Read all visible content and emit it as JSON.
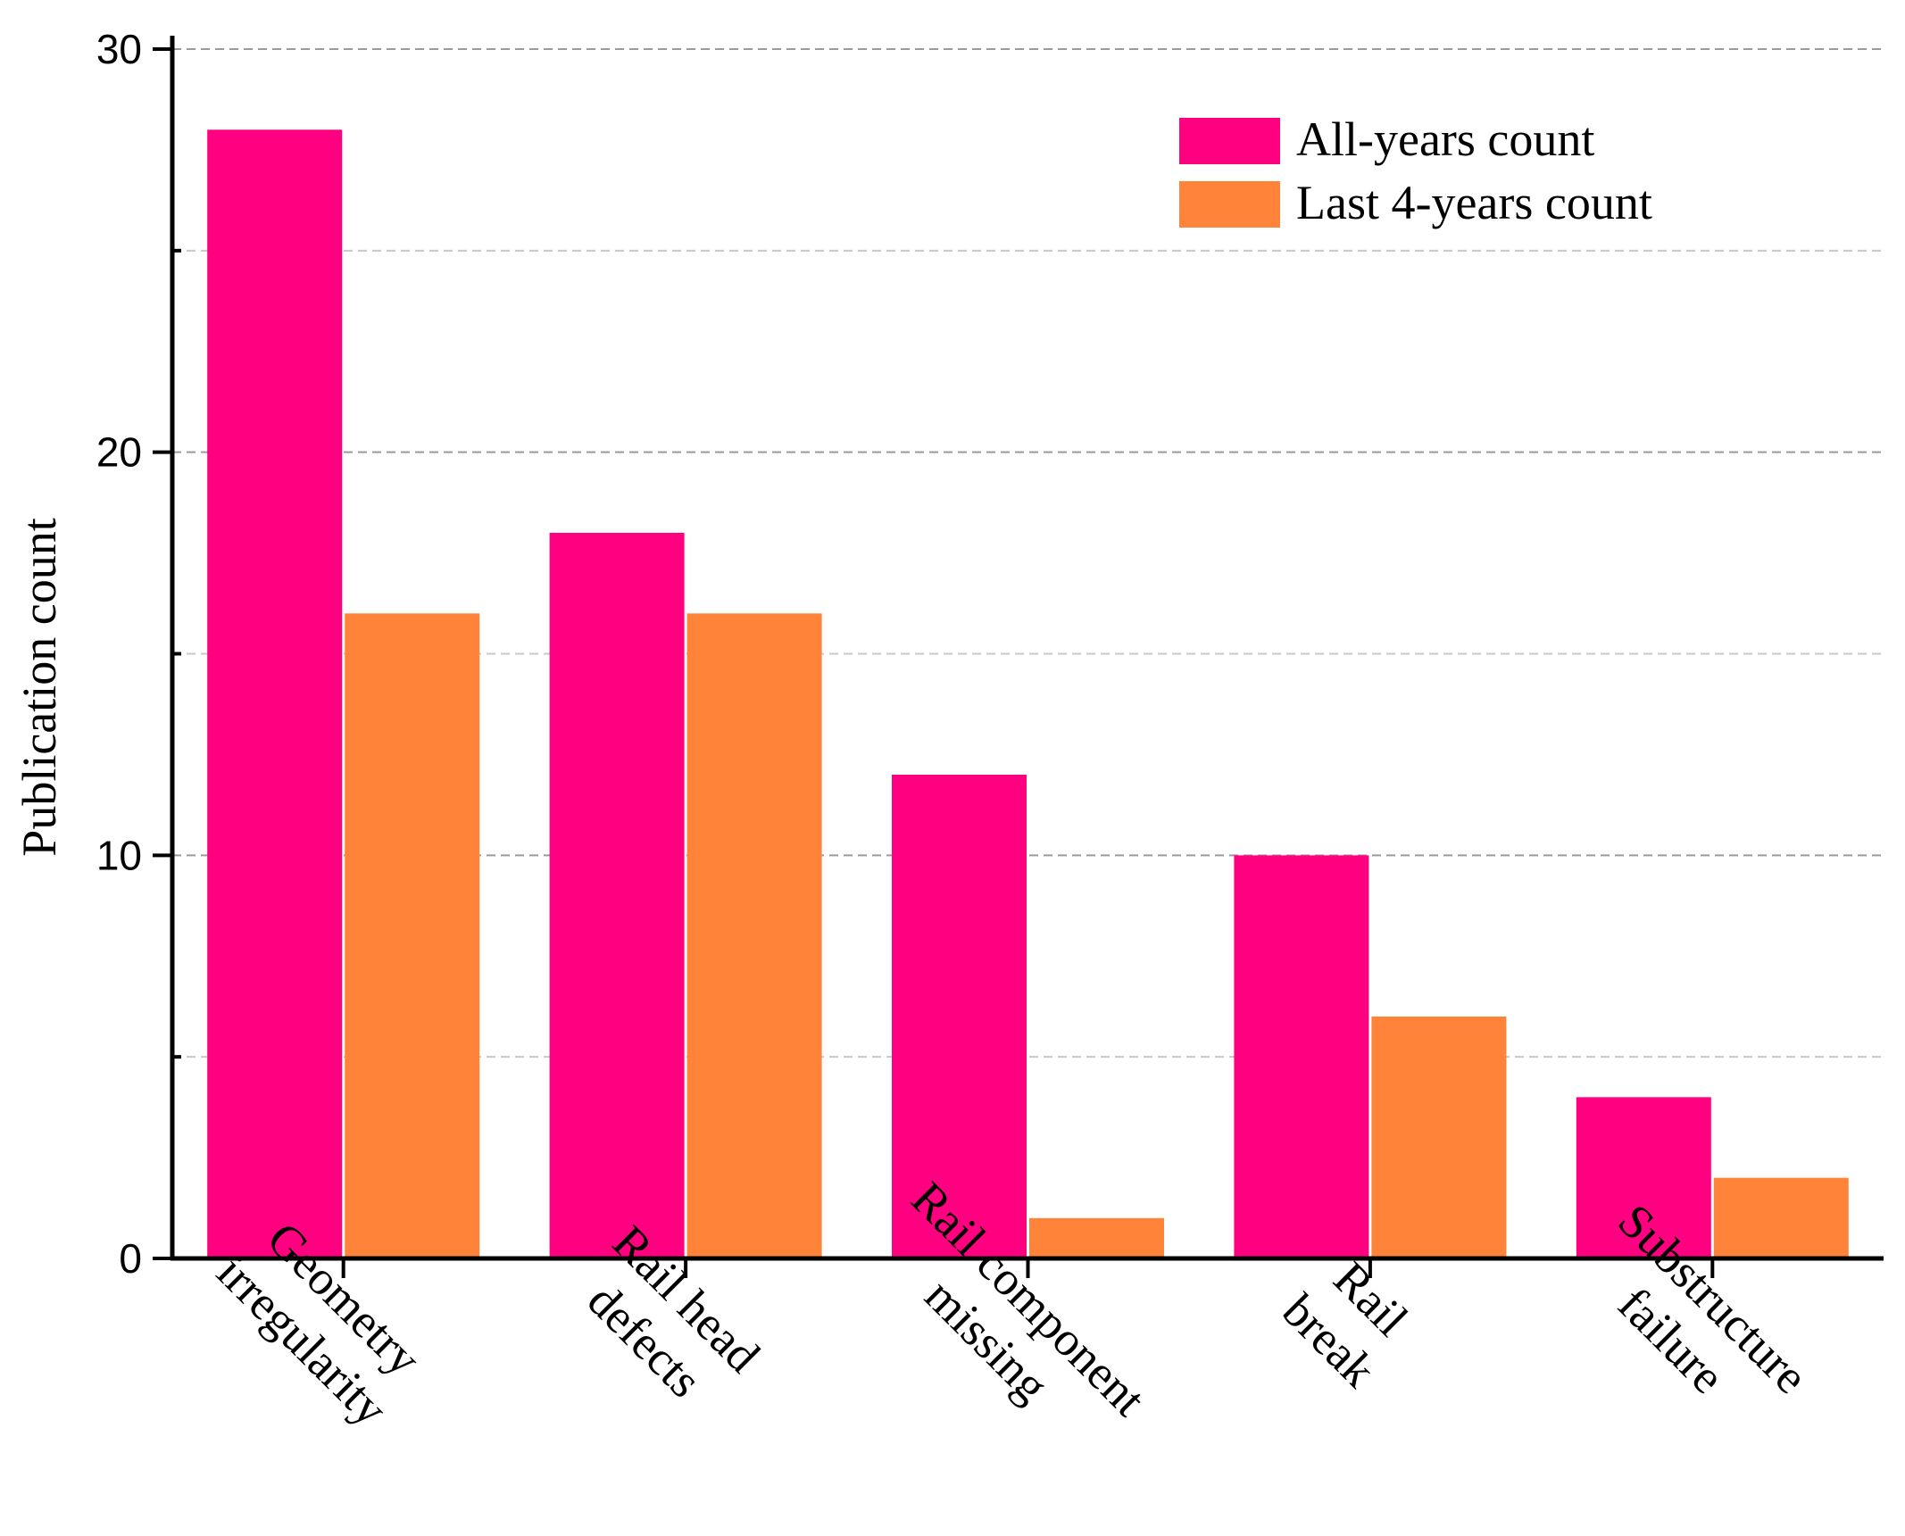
{
  "chart_data": {
    "type": "bar",
    "title": "",
    "xlabel": "",
    "ylabel": "Publication count",
    "ylim": [
      0,
      30
    ],
    "yticks": [
      0,
      10,
      20,
      30
    ],
    "grid": true,
    "legend_position": "top-right",
    "categories": [
      [
        "Geometry",
        "irregularity"
      ],
      [
        "Rail head",
        "defects"
      ],
      [
        "Rail component",
        "missing"
      ],
      [
        "Rail",
        "break"
      ],
      [
        "Substructure",
        "failure"
      ]
    ],
    "series": [
      {
        "name": "All-years count",
        "color": "#FF0080",
        "values": [
          28,
          18,
          12,
          10,
          4
        ]
      },
      {
        "name": "Last 4-years count",
        "color": "#FF8339",
        "values": [
          16,
          16,
          1,
          6,
          2
        ]
      }
    ]
  }
}
